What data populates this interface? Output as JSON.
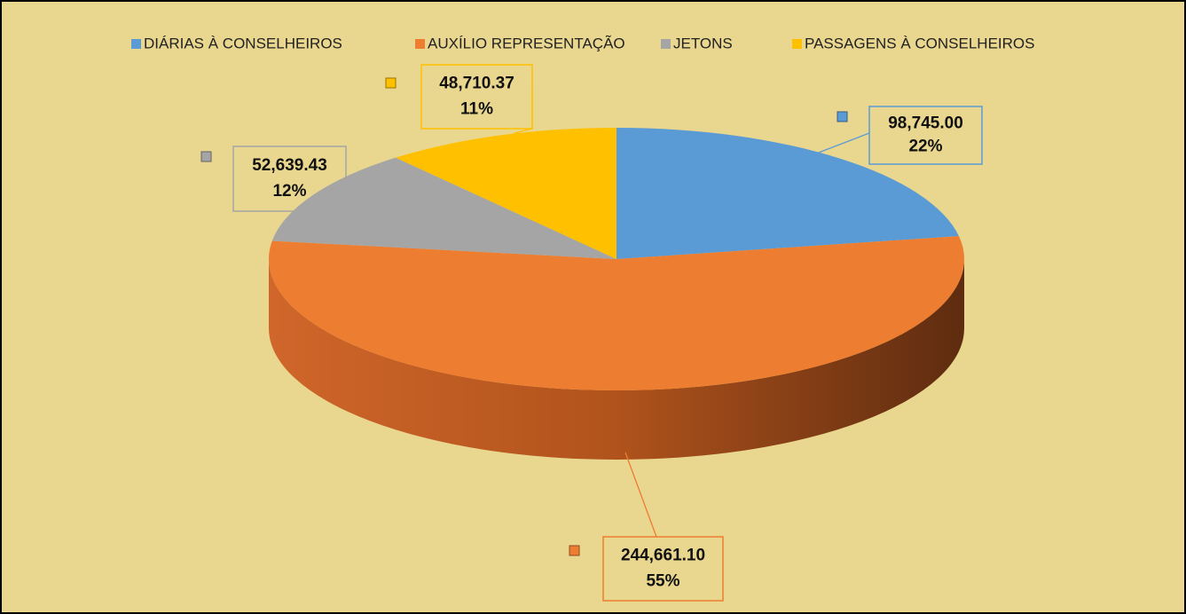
{
  "chart_data": {
    "type": "pie",
    "categories": [
      "DIÁRIAS À CONSELHEIROS",
      "AUXÍLIO REPRESENTAÇÃO",
      "JETONS",
      "PASSAGENS À CONSELHEIROS"
    ],
    "values": [
      98745.0,
      244661.1,
      52639.43,
      48710.37
    ],
    "value_labels": [
      "98,745.00",
      "244,661.10",
      "52,639.43",
      "48,710.37"
    ],
    "percents": [
      22,
      55,
      12,
      11
    ],
    "percent_labels": [
      "22%",
      "55%",
      "12%",
      "11%"
    ],
    "colors": [
      "#5b9bd5",
      "#ed7d31",
      "#a5a5a5",
      "#ffc000"
    ],
    "legend": "top"
  }
}
